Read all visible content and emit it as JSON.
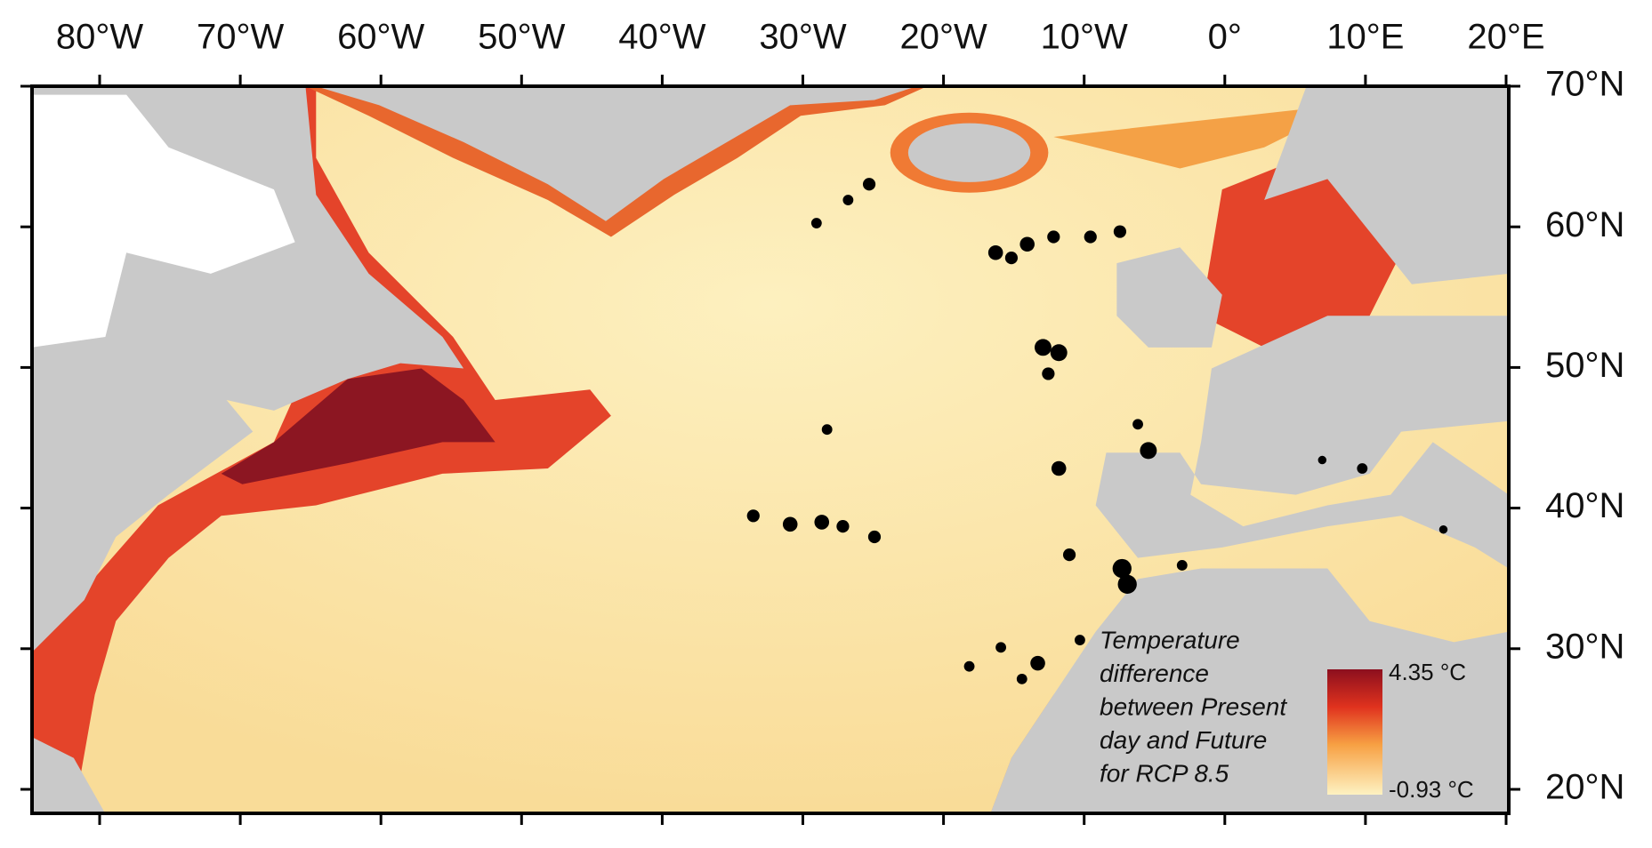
{
  "axes": {
    "longitude_labels": [
      "80°W",
      "70°W",
      "60°W",
      "50°W",
      "40°W",
      "30°W",
      "20°W",
      "10°W",
      "0°",
      "10°E",
      "20°E"
    ],
    "latitude_labels": [
      "70°N",
      "60°N",
      "50°N",
      "40°N",
      "30°N",
      "20°N"
    ]
  },
  "legend": {
    "title_lines": [
      "Temperature",
      "difference",
      "between Present",
      "day and Future",
      "for RCP 8.5"
    ],
    "max_label": "4.35 °C",
    "min_label": "-0.93 °C"
  }
}
